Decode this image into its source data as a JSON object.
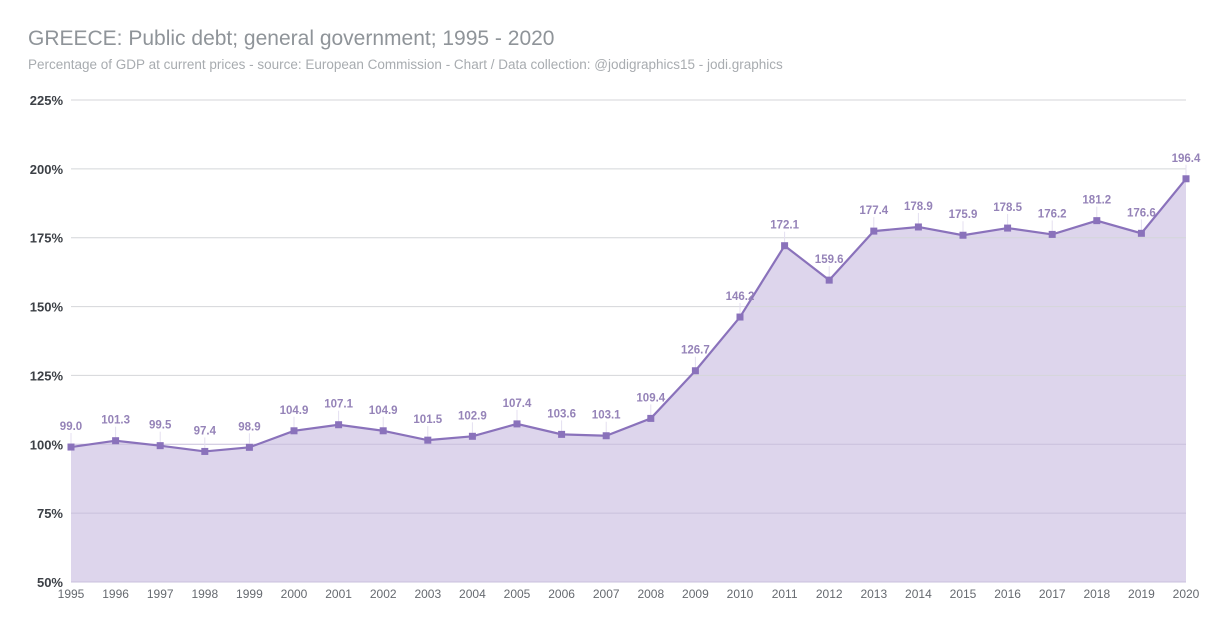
{
  "chart_data": {
    "type": "area",
    "title": "GREECE: Public debt; general government; 1995 - 2020",
    "subtitle": "Percentage of GDP at current prices - source: European Commission - Chart / Data collection: @jodigraphics15 - jodi.graphics",
    "x": [
      "1995",
      "1996",
      "1997",
      "1998",
      "1999",
      "2000",
      "2001",
      "2002",
      "2003",
      "2004",
      "2005",
      "2006",
      "2007",
      "2008",
      "2009",
      "2010",
      "2011",
      "2012",
      "2013",
      "2014",
      "2015",
      "2016",
      "2017",
      "2018",
      "2019",
      "2020"
    ],
    "values": [
      99.0,
      101.3,
      99.5,
      97.4,
      98.9,
      104.9,
      107.1,
      104.9,
      101.5,
      102.9,
      107.4,
      103.6,
      103.1,
      109.4,
      126.7,
      146.2,
      172.1,
      159.6,
      177.4,
      178.9,
      175.9,
      178.5,
      176.2,
      181.2,
      176.6,
      196.4
    ],
    "ylim": [
      50,
      225
    ],
    "yticks": [
      50,
      75,
      100,
      125,
      150,
      175,
      200,
      225
    ],
    "ytick_labels": [
      "50%",
      "75%",
      "100%",
      "125%",
      "150%",
      "175%",
      "200%",
      "225%"
    ],
    "grid": true,
    "colors": {
      "line": "#8a72bb",
      "fill": "#ddd5ec",
      "label": "#9583b8"
    }
  }
}
